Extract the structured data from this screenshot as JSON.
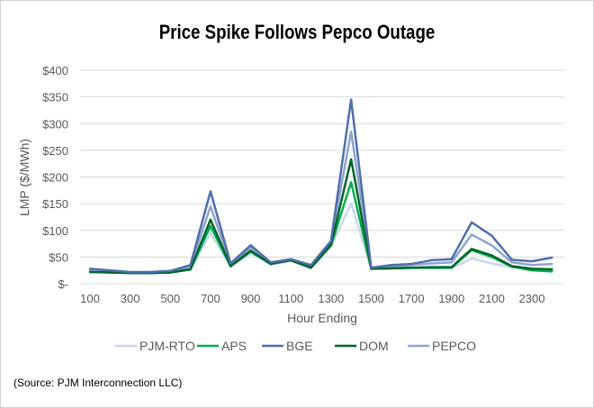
{
  "chart_data": {
    "type": "line",
    "title": "Price Spike Follows Pepco Outage",
    "xlabel": "Hour Ending",
    "ylabel": "LMP ($/MWh)",
    "x": [
      100,
      200,
      300,
      400,
      500,
      600,
      700,
      800,
      900,
      1000,
      1100,
      1200,
      1300,
      1400,
      1500,
      1600,
      1700,
      1800,
      1900,
      2000,
      2100,
      2200,
      2300,
      2400
    ],
    "x_tick_labels": [
      "100",
      "300",
      "500",
      "700",
      "900",
      "1100",
      "1300",
      "1500",
      "1700",
      "1900",
      "2100",
      "2300"
    ],
    "x_tick_values": [
      100,
      300,
      500,
      700,
      900,
      1100,
      1300,
      1500,
      1700,
      1900,
      2100,
      2300
    ],
    "y_tick_labels": [
      "$-",
      "$50",
      "$100",
      "$150",
      "$200",
      "$250",
      "$300",
      "$350",
      "$400"
    ],
    "ylim": [
      0,
      400
    ],
    "grid": "horizontal",
    "legend": "bottom",
    "series": [
      {
        "name": "PJM-RTO",
        "color": "#c9d6ee",
        "values": [
          22,
          21,
          20,
          20,
          21,
          26,
          95,
          32,
          58,
          36,
          43,
          29,
          70,
          150,
          28,
          28,
          29,
          29,
          29,
          47,
          38,
          31,
          27,
          25
        ]
      },
      {
        "name": "APS",
        "color": "#00b050",
        "values": [
          22,
          21,
          20,
          20,
          21,
          27,
          108,
          33,
          60,
          37,
          44,
          30,
          72,
          190,
          28,
          29,
          30,
          30,
          30,
          63,
          50,
          32,
          25,
          23
        ]
      },
      {
        "name": "BGE",
        "color": "#4f6fad",
        "values": [
          28,
          25,
          22,
          22,
          24,
          35,
          173,
          38,
          72,
          40,
          46,
          35,
          80,
          345,
          30,
          35,
          37,
          44,
          46,
          115,
          90,
          45,
          42,
          49
        ]
      },
      {
        "name": "DOM",
        "color": "#00642b",
        "values": [
          22,
          21,
          20,
          20,
          21,
          27,
          120,
          33,
          62,
          37,
          44,
          30,
          73,
          233,
          28,
          29,
          30,
          31,
          31,
          65,
          53,
          33,
          28,
          27
        ]
      },
      {
        "name": "PEPCO",
        "color": "#8ea5d0",
        "values": [
          26,
          23,
          21,
          21,
          23,
          32,
          145,
          36,
          68,
          40,
          45,
          33,
          78,
          285,
          30,
          33,
          35,
          38,
          40,
          92,
          72,
          40,
          35,
          37
        ]
      }
    ]
  },
  "source": "(Source: PJM Interconnection LLC)"
}
